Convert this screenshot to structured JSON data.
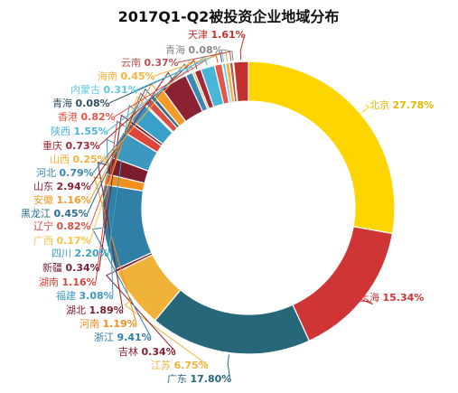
{
  "chart_data": {
    "type": "pie",
    "variant": "donut",
    "title": "2017Q1-Q2被投资企业地域分布",
    "labels": [
      "北京",
      "上海",
      "广东",
      "江苏",
      "吉林",
      "浙江",
      "河南",
      "湖北",
      "福建",
      "湖南",
      "新疆",
      "四川",
      "广西",
      "辽宁",
      "黑龙江",
      "安徽",
      "山东",
      "河北",
      "山西",
      "重庆",
      "陕西",
      "香港",
      "青海",
      "内蒙古",
      "海南",
      "云南",
      "青海",
      "天津"
    ],
    "values": [
      27.78,
      15.34,
      17.8,
      6.75,
      0.34,
      9.41,
      1.19,
      1.89,
      3.08,
      1.16,
      0.34,
      2.2,
      0.17,
      0.82,
      0.45,
      1.16,
      2.94,
      0.79,
      0.25,
      0.73,
      1.55,
      0.82,
      0.08,
      0.31,
      0.45,
      0.37,
      0.08,
      1.61
    ],
    "value_labels": [
      "27.78%",
      "15.34%",
      "17.80%",
      "6.75%",
      "0.34%",
      "9.41%",
      "1.19%",
      "1.89%",
      "3.08%",
      "1.16%",
      "0.34%",
      "2.20%",
      "0.17%",
      "0.82%",
      "0.45%",
      "1.16%",
      "2.94%",
      "0.79%",
      "0.25%",
      "0.73%",
      "1.55%",
      "0.82%",
      "0.08%",
      "0.31%",
      "0.45%",
      "0.37%",
      "0.08%",
      "1.61%"
    ],
    "colors": [
      "#FFD500",
      "#D03535",
      "#26687A",
      "#F0B238",
      "#8B1E2E",
      "#2F7FA6",
      "#F28F1C",
      "#7A1C2C",
      "#3D98BF",
      "#E0453A",
      "#7A1F33",
      "#3AA0C8",
      "#F4C542",
      "#D94F45",
      "#2A6E8A",
      "#F39A28",
      "#8B2233",
      "#3589B4",
      "#F6AF3A",
      "#A02A3A",
      "#47B6D8",
      "#E3564A",
      "#30505F",
      "#5CCBEB",
      "#F5B23C",
      "#B85450",
      "#888888",
      "#C0312C"
    ],
    "legend": "none",
    "grid": false
  }
}
